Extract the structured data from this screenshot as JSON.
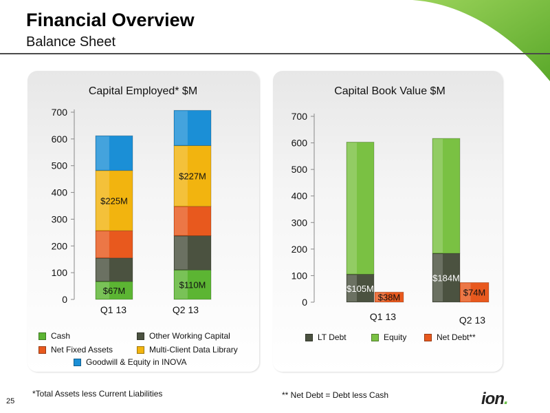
{
  "header": {
    "title": "Financial Overview",
    "subtitle": "Balance Sheet"
  },
  "colors": {
    "cash": "#5cb533",
    "other_working_capital": "#4b5240",
    "net_fixed_assets": "#e8591e",
    "multi_client": "#f2b40f",
    "goodwill": "#1b8fd6",
    "lt_debt": "#4b5240",
    "equity": "#7ac143",
    "net_debt": "#e8591e",
    "brand_green": "#6cc24a"
  },
  "chart_data": [
    {
      "type": "bar",
      "stacked": true,
      "title": "Capital Employed* $M",
      "categories": [
        "Q1 13",
        "Q2 13"
      ],
      "ylim": [
        0,
        700
      ],
      "yticks": [
        0,
        100,
        200,
        300,
        400,
        500,
        600,
        700
      ],
      "grid": false,
      "series": [
        {
          "name": "Cash",
          "values": [
            67,
            110
          ],
          "labels": [
            "$67M",
            "$110M"
          ],
          "color": "#5cb533",
          "label_color": "#111111"
        },
        {
          "name": "Other Working Capital",
          "values": [
            88,
            128
          ],
          "labels": [
            "",
            ""
          ],
          "color": "#4b5240",
          "label_color": "#ffffff"
        },
        {
          "name": "Net Fixed Assets",
          "values": [
            102,
            110
          ],
          "labels": [
            "",
            ""
          ],
          "color": "#e8591e",
          "label_color": "#111111"
        },
        {
          "name": "Multi-Client Data Library",
          "values": [
            225,
            227
          ],
          "labels": [
            "$225M",
            "$227M"
          ],
          "color": "#f2b40f",
          "label_color": "#111111"
        },
        {
          "name": "Goodwill & Equity in INOVA",
          "values": [
            130,
            132
          ],
          "labels": [
            "",
            ""
          ],
          "color": "#1b8fd6",
          "label_color": "#111111"
        }
      ],
      "legend": "bottom"
    },
    {
      "type": "bar",
      "title": "Capital Book Value $M",
      "categories": [
        "Q1 13",
        "Q2 13"
      ],
      "ylim": [
        0,
        700
      ],
      "yticks": [
        0,
        100,
        200,
        300,
        400,
        500,
        600,
        700
      ],
      "grid": false,
      "stacks": [
        {
          "name": "LT Debt",
          "values": [
            105,
            184
          ],
          "labels": [
            "$105M",
            "$184M"
          ],
          "color": "#4b5240",
          "label_color": "#ffffff",
          "stack": "a"
        },
        {
          "name": "Equity",
          "values": [
            498,
            433
          ],
          "labels": [
            "",
            ""
          ],
          "color": "#7ac143",
          "label_color": "#111111",
          "stack": "a"
        },
        {
          "name": "Net Debt**",
          "values": [
            38,
            74
          ],
          "labels": [
            "$38M",
            "$74M"
          ],
          "color": "#e8591e",
          "label_color": "#111111",
          "stack": "b"
        }
      ],
      "legend": "bottom"
    }
  ],
  "legend_left": [
    {
      "label": "Cash",
      "color": "#5cb533"
    },
    {
      "label": "Other Working Capital",
      "color": "#4b5240"
    },
    {
      "label": "Net Fixed Assets",
      "color": "#e8591e"
    },
    {
      "label": "Multi-Client Data Library",
      "color": "#f2b40f"
    },
    {
      "label": "Goodwill & Equity in INOVA",
      "color": "#1b8fd6"
    }
  ],
  "legend_right": [
    {
      "label": "LT Debt",
      "color": "#4b5240"
    },
    {
      "label": "Equity",
      "color": "#7ac143"
    },
    {
      "label": "Net Debt**",
      "color": "#e8591e"
    }
  ],
  "footnotes": {
    "left": "*Total Assets less Current Liabilities",
    "right": "** Net Debt = Debt less Cash"
  },
  "page_number": "25",
  "logo": {
    "text": "ion"
  }
}
